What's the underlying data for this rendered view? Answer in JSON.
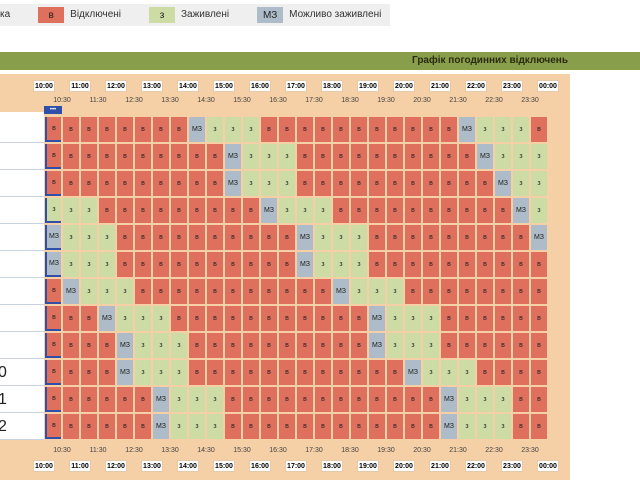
{
  "legend": [
    {
      "key": null,
      "label": "ка"
    },
    {
      "key": "в",
      "label": "Відключені",
      "color": "#e0705e"
    },
    {
      "key": "з",
      "label": "Заживлені",
      "color": "#cddba4"
    },
    {
      "key": "МЗ",
      "label": "Можливо заживлені",
      "color": "#adbcc8"
    }
  ],
  "header": {
    "title": "Графік погодинних відключень"
  },
  "hours": [
    "10:00",
    "11:00",
    "12:00",
    "13:00",
    "14:00",
    "15:00",
    "16:00",
    "17:00",
    "18:00",
    "19:00",
    "20:00",
    "21:00",
    "22:00",
    "23:00",
    "00:00"
  ],
  "half_hours": [
    "10:30",
    "11:30",
    "12:30",
    "13:30",
    "14:30",
    "15:30",
    "16:30",
    "17:30",
    "18:30",
    "19:30",
    "20:30",
    "21:30",
    "22:30",
    "23:30"
  ],
  "current_marker": "•••",
  "row_labels": [
    "0",
    "1",
    "2"
  ],
  "rows": [
    "в в в в в в в в МЗ з з з в в в в в в в в в в в МЗ з з з в",
    "в в в в в в в в в в МЗ з з з в в в в в в в в в в МЗ з з з",
    "в в в в в в в в в в МЗ з з з в в в в в в в в в в в МЗ з з",
    "з з з в в в в в в в в в МЗ з з з в в в в в в в в в в МЗ з",
    "МЗ з з з в в в в в в в в в в МЗ з з з в в в в в в в в в МЗ",
    "МЗ з з з в в в в в в в в в в МЗ з з з в в в в в в в в в в",
    "в МЗ з з з в в в в в в в в в в в МЗ з з з в в в в в в в в",
    "в в в МЗ з з з в в в в в в в в в в в МЗ з з з в в в в в в",
    "в в в в МЗ з з з в в в в в в в в в в МЗ з з з в в в в в в",
    "в в в в МЗ з з з в в в в в в в в в в в в МЗ з з з в в в в",
    "в в в в в в МЗ з з з в в в в в в в в в в в в МЗ з з з в в",
    "в в в в в в МЗ з з з в в в в в в в в в в в в МЗ з з з в в"
  ]
}
